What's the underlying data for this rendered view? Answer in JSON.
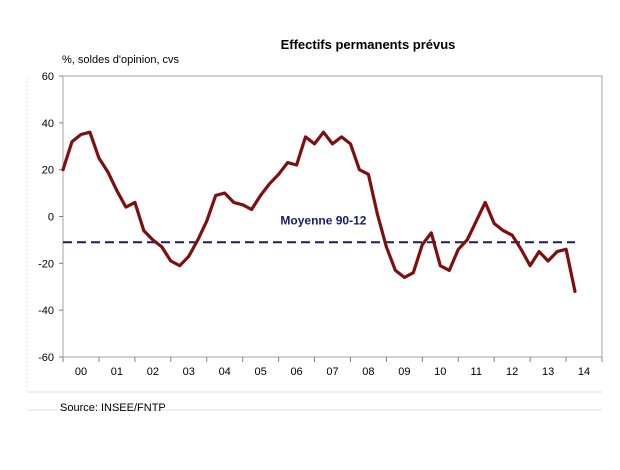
{
  "chart_data": {
    "type": "line",
    "title": "Effectifs permanents prévus",
    "ylabel": "%, soldes d'opinion,  cvs",
    "xlabel": "",
    "ylim": [
      -60,
      60
    ],
    "yticks": [
      -60,
      -40,
      -20,
      0,
      20,
      40,
      60
    ],
    "categories": [
      "00",
      "01",
      "02",
      "03",
      "04",
      "05",
      "06",
      "07",
      "08",
      "09",
      "10",
      "11",
      "12",
      "13",
      "14"
    ],
    "grid": false,
    "series": [
      {
        "color": "#7f0f0f",
        "x": [
          2000.0,
          2000.25,
          2000.5,
          2000.75,
          2001.0,
          2001.25,
          2001.5,
          2001.75,
          2002.0,
          2002.25,
          2002.5,
          2002.75,
          2003.0,
          2003.25,
          2003.5,
          2003.75,
          2004.0,
          2004.25,
          2004.5,
          2004.75,
          2005.0,
          2005.25,
          2005.5,
          2005.75,
          2006.0,
          2006.25,
          2006.5,
          2006.75,
          2007.0,
          2007.25,
          2007.5,
          2007.75,
          2008.0,
          2008.25,
          2008.5,
          2008.75,
          2009.0,
          2009.25,
          2009.5,
          2009.75,
          2010.0,
          2010.25,
          2010.5,
          2010.75,
          2011.0,
          2011.25,
          2011.5,
          2011.75,
          2012.0,
          2012.25,
          2012.5,
          2012.75,
          2013.0,
          2013.25,
          2013.5,
          2013.75,
          2014.0,
          2014.25
        ],
        "values": [
          20,
          32,
          35,
          36,
          25,
          19,
          11,
          4,
          6,
          -6,
          -10,
          -13,
          -19,
          -21,
          -17,
          -10,
          -2,
          9,
          10,
          6,
          5,
          3,
          9,
          14,
          18,
          23,
          22,
          34,
          31,
          36,
          31,
          34,
          31,
          20,
          18,
          1,
          -13,
          -23,
          -26,
          -24,
          -12,
          -7,
          -21,
          -23,
          -14,
          -10,
          -2,
          6,
          -3,
          -6,
          -8,
          -14,
          -21,
          -15,
          -19,
          -15,
          -14,
          -32
        ]
      }
    ],
    "reference_line": {
      "label": "Moyenne 90-12",
      "value": -11,
      "color": "#1a1a6e"
    },
    "source": "Source: INSEE/FNTP"
  }
}
